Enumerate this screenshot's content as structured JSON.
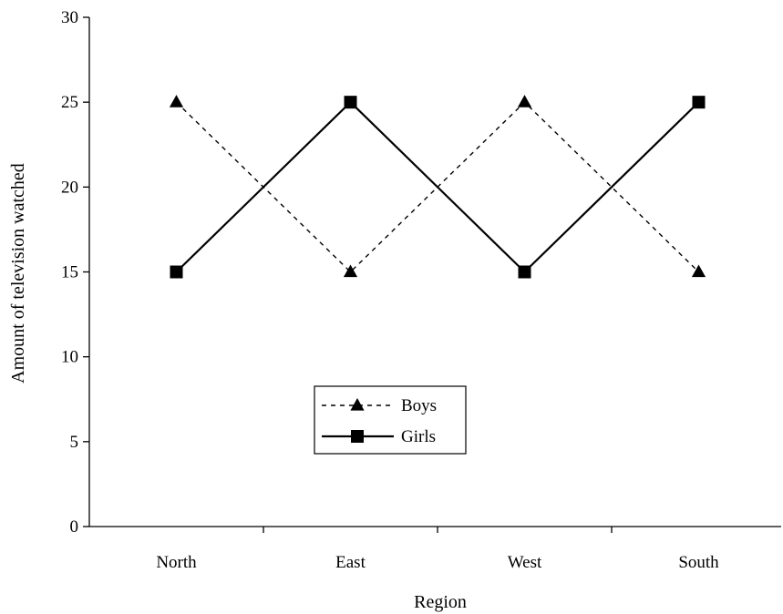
{
  "chart_data": {
    "type": "line",
    "title": "",
    "xlabel": "Region",
    "ylabel": "Amount of television watched",
    "categories": [
      "North",
      "East",
      "West",
      "South"
    ],
    "ylim": [
      0,
      30
    ],
    "yticks": [
      0,
      5,
      10,
      15,
      20,
      25,
      30
    ],
    "grid": false,
    "legend_position": "center-left",
    "series": [
      {
        "name": "Boys",
        "values": [
          25,
          15,
          25,
          15
        ],
        "line_style": "dashed",
        "marker": "triangle",
        "color": "#000000"
      },
      {
        "name": "Girls",
        "values": [
          15,
          25,
          15,
          25
        ],
        "line_style": "solid",
        "marker": "square",
        "color": "#000000"
      }
    ]
  }
}
